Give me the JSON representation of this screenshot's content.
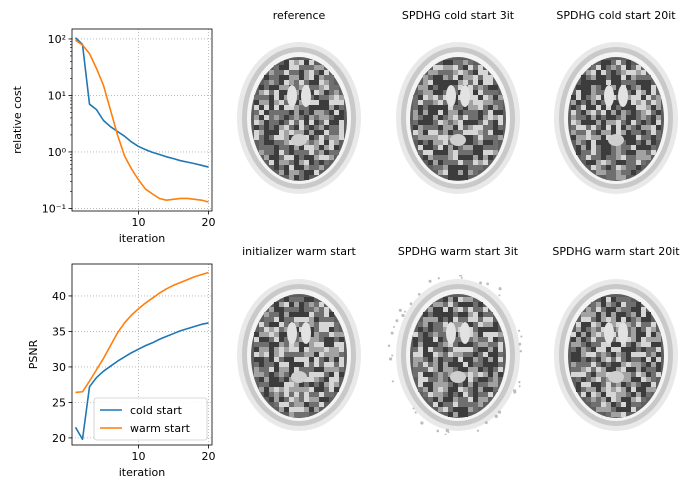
{
  "chart_data": [
    {
      "type": "line",
      "xlabel": "iteration",
      "ylabel": "relative cost",
      "yscale": "log",
      "xlim": [
        0.5,
        20.5
      ],
      "ylim": [
        0.09,
        150
      ],
      "xticks": [
        10,
        20
      ],
      "yticks": [
        {
          "v": 0.1,
          "label": "10⁻¹"
        },
        {
          "v": 1,
          "label": "10⁰"
        },
        {
          "v": 10,
          "label": "10¹"
        },
        {
          "v": 100,
          "label": "10²"
        }
      ],
      "grid": true,
      "x": [
        1,
        2,
        3,
        4,
        5,
        6,
        7,
        8,
        9,
        10,
        11,
        12,
        13,
        14,
        15,
        16,
        17,
        18,
        19,
        20
      ],
      "series": [
        {
          "name": "cold start",
          "color": "#1f77b4",
          "values": [
            105,
            80,
            7,
            5.6,
            3.6,
            2.8,
            2.3,
            1.9,
            1.5,
            1.25,
            1.1,
            0.98,
            0.9,
            0.82,
            0.76,
            0.7,
            0.66,
            0.62,
            0.58,
            0.54
          ]
        },
        {
          "name": "warm start",
          "color": "#ff7f0e",
          "values": [
            95,
            78,
            55,
            30,
            15,
            5.5,
            2.0,
            0.85,
            0.5,
            0.32,
            0.22,
            0.18,
            0.15,
            0.14,
            0.145,
            0.15,
            0.15,
            0.145,
            0.14,
            0.13
          ]
        }
      ]
    },
    {
      "type": "line",
      "xlabel": "iteration",
      "ylabel": "PSNR",
      "xlim": [
        0.5,
        20.5
      ],
      "ylim": [
        19,
        44.5
      ],
      "xticks": [
        10,
        20
      ],
      "yticks": [
        {
          "v": 20,
          "label": "20"
        },
        {
          "v": 25,
          "label": "25"
        },
        {
          "v": 30,
          "label": "30"
        },
        {
          "v": 35,
          "label": "35"
        },
        {
          "v": 40,
          "label": "40"
        }
      ],
      "grid": true,
      "legend": "lower-right",
      "x": [
        1,
        2,
        3,
        4,
        5,
        6,
        7,
        8,
        9,
        10,
        11,
        12,
        13,
        14,
        15,
        16,
        17,
        18,
        19,
        20
      ],
      "series": [
        {
          "name": "cold start",
          "color": "#1f77b4",
          "values": [
            21.5,
            19.8,
            27.2,
            28.5,
            29.4,
            30.1,
            30.8,
            31.4,
            32.0,
            32.5,
            33.0,
            33.4,
            33.9,
            34.3,
            34.7,
            35.1,
            35.4,
            35.7,
            36.0,
            36.2
          ]
        },
        {
          "name": "warm start",
          "color": "#ff7f0e",
          "values": [
            26.4,
            26.5,
            28.0,
            29.6,
            31.2,
            33.0,
            34.8,
            36.2,
            37.3,
            38.2,
            39.0,
            39.7,
            40.4,
            41.0,
            41.5,
            41.9,
            42.3,
            42.7,
            43.0,
            43.3
          ]
        }
      ]
    }
  ],
  "panels": [
    {
      "title": "reference"
    },
    {
      "title": "SPDHG cold start 3it"
    },
    {
      "title": "SPDHG cold start 20it"
    },
    {
      "title": "initializer warm start"
    },
    {
      "title": "SPDHG warm start 3it"
    },
    {
      "title": "SPDHG warm start 20it"
    }
  ]
}
